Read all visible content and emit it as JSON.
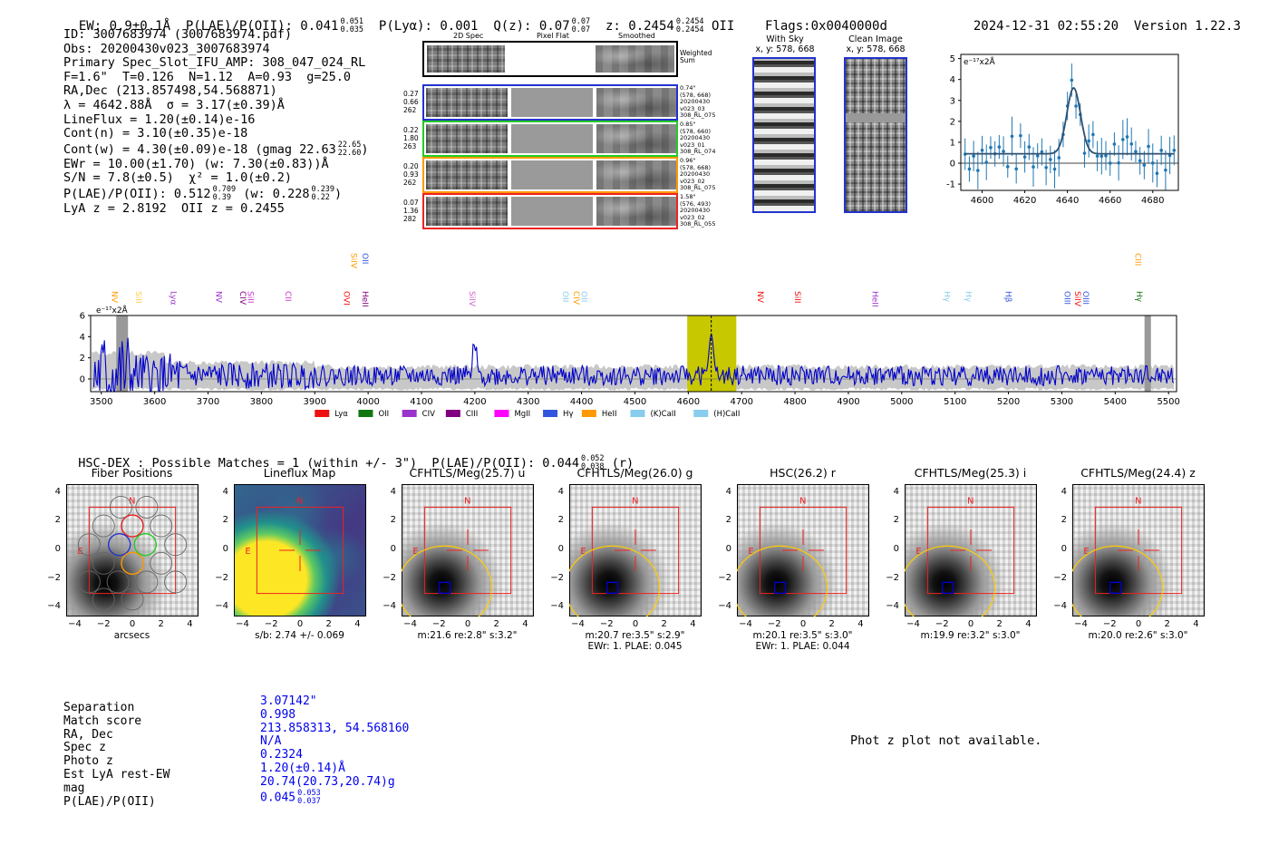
{
  "header": {
    "ew": "EW: 0.9±0.1Å",
    "plae_label": "P(LAE)/P(OII): 0.041",
    "plae_hi": "0.051",
    "plae_lo": "0.035",
    "plya": "P(Lyα): 0.001",
    "qz_label": "Q(z): 0.07",
    "qz_hi": "0.07",
    "qz_lo": "0.07",
    "z_label": "z: 0.2454",
    "z_hi": "0.2454",
    "z_lo": "0.2454",
    "z_type": "OII",
    "flags": "Flags:0x0040000d",
    "timestamp": "2024-12-31 02:55:20",
    "version": "Version 1.22.3"
  },
  "info": {
    "id": "ID: 3007683974 (3007683974.pdf)",
    "obs": "Obs: 20200430v023_3007683974",
    "primary": "Primary Spec_Slot_IFU_AMP: 308_047_024_RL",
    "params": "F=1.6\"  T=0.126  N=1.12  A=0.93  g=25.0",
    "radec": "RA,Dec (213.857498,54.568871)",
    "lambda": "λ = 4642.88Å  σ = 3.17(±0.39)Å",
    "lineflux": "LineFlux = 1.20(±0.14)e-16",
    "cont_n": "Cont(n) = 3.10(±0.35)e-18",
    "cont_w": "Cont(w) = 4.30(±0.09)e-18 (gmag 22.63",
    "cont_w_hi": "22.65",
    "cont_w_lo": "22.60",
    "cont_w_close": ")",
    "ewr": "EWr = 10.00(±1.70) (w: 7.30(±0.83))Å",
    "sn": "S/N = 7.8(±0.5)  χ² = 1.0(±0.2)",
    "plae_a": "P(LAE)/P(OII): 0.512",
    "plae_a_hi": "0.709",
    "plae_a_lo": "0.39",
    "plae_b": "(w: 0.228",
    "plae_b_hi": "0.239",
    "plae_b_lo": "0.22",
    "plae_b_close": ")",
    "lya": "LyA z = 2.8192  OII z = 0.2455"
  },
  "cutout_panel": {
    "col1": "2D Spec",
    "col2": "Pixel Flat",
    "col3": "Smoothed",
    "weighted": "Weighted Sum",
    "rows": [
      {
        "v1": "0.27",
        "v2": "0.66",
        "v3": "262",
        "color": "#2233cc",
        "side": [
          "0.74\"",
          "(578, 668)",
          "20200430",
          "v023_03",
          "308_RL_075"
        ]
      },
      {
        "v1": "0.22",
        "v2": "1.80",
        "v3": "263",
        "color": "#22cc22",
        "side": [
          "0.85\"",
          "(578, 660)",
          "20200430",
          "v023_01",
          "308_RL_074"
        ]
      },
      {
        "v1": "0.20",
        "v2": "0.93",
        "v3": "262",
        "color": "#ff9900",
        "side": [
          "0.96\"",
          "(578, 668)",
          "20200430",
          "v023_02",
          "308_RL_075"
        ]
      },
      {
        "v1": "0.07",
        "v2": "1.36",
        "v3": "282",
        "color": "#ee2222",
        "side": [
          "1.58\"",
          "(576, 493)",
          "20200430",
          "v023_02",
          "308_RL_055"
        ]
      }
    ]
  },
  "sky": {
    "with_sky": "With Sky",
    "with_sky_xy": "x, y: 578, 668",
    "clean": "Clean Image",
    "clean_xy": "x, y: 578, 668"
  },
  "zoom": {
    "unit": "e⁻¹⁷x2Å",
    "yticks": [
      "5",
      "4",
      "3",
      "2",
      "1",
      "0",
      "-1"
    ],
    "xticks": [
      "4600",
      "4620",
      "4640",
      "4660",
      "4680"
    ]
  },
  "spectrum": {
    "unit": "e⁻¹⁷x2Å",
    "yticks": [
      "6",
      "4",
      "2",
      "0"
    ],
    "xticks": [
      "3500",
      "3600",
      "3700",
      "3800",
      "3900",
      "4000",
      "4100",
      "4200",
      "4300",
      "4400",
      "4500",
      "4600",
      "4700",
      "4800",
      "4900",
      "5000",
      "5100",
      "5200",
      "5300",
      "5400",
      "5500"
    ],
    "legend": [
      {
        "label": "Lyα",
        "color": "#ee1111"
      },
      {
        "label": "OII",
        "color": "#117711"
      },
      {
        "label": "CIV",
        "color": "#9933cc"
      },
      {
        "label": "CIII",
        "color": "#800080"
      },
      {
        "label": "MgII",
        "color": "#ff00ff"
      },
      {
        "label": "Hγ",
        "color": "#3355dd"
      },
      {
        "label": "HeII",
        "color": "#ff9900"
      },
      {
        "label": "(K)CaII",
        "color": "#88ccee"
      },
      {
        "label": "(H)CaII",
        "color": "#88ccee"
      }
    ],
    "lines_low": [
      {
        "label": "NV",
        "color": "#ff9900",
        "wl": 3520
      },
      {
        "label": "SiII",
        "color": "#ffcc44",
        "wl": 3565
      },
      {
        "label": "Lyα",
        "color": "#9933cc",
        "wl": 3630
      },
      {
        "label": "NV",
        "color": "#9933cc",
        "wl": 3715
      },
      {
        "label": "CIV",
        "color": "#800080",
        "wl": 3760
      },
      {
        "label": "SiII",
        "color": "#cc33cc",
        "wl": 3775
      },
      {
        "label": "CII",
        "color": "#cc33cc",
        "wl": 3845
      },
      {
        "label": "OVI",
        "color": "#ee1111",
        "wl": 3955
      },
      {
        "label": "HeII",
        "color": "#800080",
        "wl": 3990
      },
      {
        "label": "SiIV",
        "color": "#cc66cc",
        "wl": 4190
      },
      {
        "label": "OII",
        "color": "#88ccee",
        "wl": 4365
      },
      {
        "label": "CIV",
        "color": "#ff9900",
        "wl": 4385
      },
      {
        "label": "OII",
        "color": "#88ccee",
        "wl": 4400
      },
      {
        "label": "NV",
        "color": "#ee1111",
        "wl": 4730
      },
      {
        "label": "SiII",
        "color": "#ee1111",
        "wl": 4800
      },
      {
        "label": "HeII",
        "color": "#9933cc",
        "wl": 4945
      },
      {
        "label": "Hγ",
        "color": "#88ccee",
        "wl": 5080
      },
      {
        "label": "Hγ",
        "color": "#88ccee",
        "wl": 5120
      },
      {
        "label": "Hβ",
        "color": "#3355dd",
        "wl": 5195
      },
      {
        "label": "OIII",
        "color": "#3355dd",
        "wl": 5305
      },
      {
        "label": "SiIV",
        "color": "#ee1111",
        "wl": 5325
      },
      {
        "label": "OIII",
        "color": "#3355dd",
        "wl": 5340
      },
      {
        "label": "Hγ",
        "color": "#117711",
        "wl": 5440
      }
    ],
    "lines_high": [
      {
        "label": "SiIV",
        "color": "#ff9900",
        "wl": 3968
      },
      {
        "label": "OII",
        "color": "#3355dd",
        "wl": 3990
      },
      {
        "label": "CIII",
        "color": "#ff9900",
        "wl": 5438
      }
    ]
  },
  "hsc": {
    "title": "HSC-DEX : Possible Matches = 1 (within +/- 3\")  P(LAE)/P(OII): 0.044",
    "hi": "0.052",
    "lo": "0.038",
    "suffix": "(r)"
  },
  "cutouts": [
    {
      "title": "Fiber Positions",
      "caption": "arcsecs",
      "caption2": ""
    },
    {
      "title": "Lineflux Map",
      "caption": "s/b: 2.74 +/- 0.069",
      "caption2": ""
    },
    {
      "title": "CFHTLS/Meg(25.7) u",
      "caption": "m:21.6  re:2.8\"  s:3.2\"",
      "caption2": ""
    },
    {
      "title": "CFHTLS/Meg(26.0) g",
      "caption": "m:20.7  re:3.5\"  s:2.9\"",
      "caption2": "EWr: 1. PLAE: 0.045"
    },
    {
      "title": "HSC(26.2) r",
      "caption": "m:20.1  re:3.5\"  s:3.0\"",
      "caption2": "EWr: 1. PLAE: 0.044"
    },
    {
      "title": "CFHTLS/Meg(25.3) i",
      "caption": "m:19.9  re:3.2\"  s:3.0\"",
      "caption2": ""
    },
    {
      "title": "CFHTLS/Meg(24.4) z",
      "caption": "m:20.0  re:2.6\"  s:3.0\"",
      "caption2": ""
    }
  ],
  "cutout_axes": {
    "yticks": [
      "4",
      "2",
      "0",
      "−2",
      "−4"
    ],
    "xticks": [
      "−4",
      "−2",
      "0",
      "2",
      "4"
    ],
    "north": "N",
    "east": "E"
  },
  "match": {
    "labels": [
      "Separation",
      "Match score",
      "RA, Dec",
      "Spec z",
      "Photo z",
      "Est LyA rest-EW",
      "mag",
      "P(LAE)/P(OII)"
    ],
    "values": [
      "3.07142\"",
      "0.998",
      "213.858313, 54.568160",
      "N/A",
      "0.2324",
      "1.20(±0.14)Å",
      "20.74(20.73,20.74)g",
      "0.045"
    ],
    "plae_hi": "0.053",
    "plae_lo": "0.037"
  },
  "photz": "Phot z plot not available.",
  "colors": {
    "spectrum": "#0000cc",
    "highlight": "#c8c800",
    "box_red": "#ee2222",
    "aperture": "#ffcc00"
  }
}
